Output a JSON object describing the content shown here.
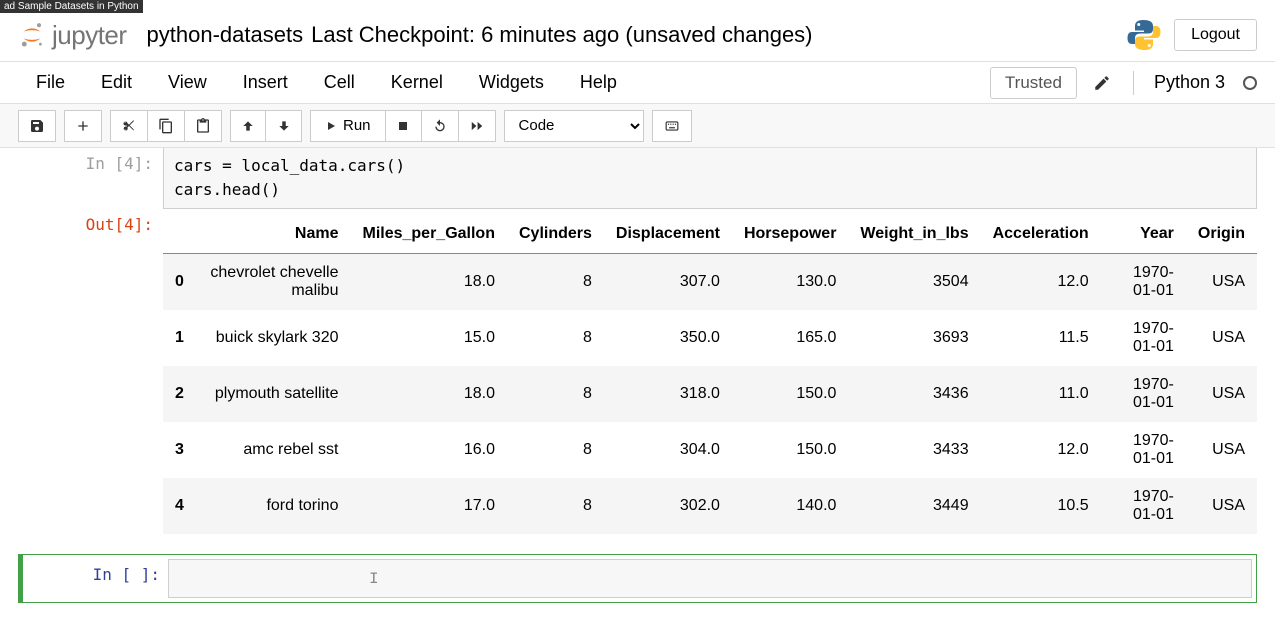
{
  "top_hint": "ad Sample Datasets in Python",
  "header": {
    "logo_text": "jupyter",
    "title": "python-datasets",
    "checkpoint": "Last Checkpoint: 6 minutes ago  (unsaved changes)",
    "logout": "Logout"
  },
  "menubar": {
    "items": [
      "File",
      "Edit",
      "View",
      "Insert",
      "Cell",
      "Kernel",
      "Widgets",
      "Help"
    ],
    "trusted": "Trusted",
    "kernel": "Python 3"
  },
  "toolbar": {
    "run_label": "Run",
    "celltype": "Code"
  },
  "cell4": {
    "in_prompt": "In [4]:",
    "out_prompt": "Out[4]:",
    "code_lines": [
      "cars = local_data.cars()",
      "cars.head()"
    ]
  },
  "dataframe": {
    "columns": [
      "Name",
      "Miles_per_Gallon",
      "Cylinders",
      "Displacement",
      "Horsepower",
      "Weight_in_lbs",
      "Acceleration",
      "Year",
      "Origin"
    ],
    "index": [
      "0",
      "1",
      "2",
      "3",
      "4"
    ],
    "rows": [
      [
        "chevrolet chevelle malibu",
        "18.0",
        "8",
        "307.0",
        "130.0",
        "3504",
        "12.0",
        "1970-01-01",
        "USA"
      ],
      [
        "buick skylark 320",
        "15.0",
        "8",
        "350.0",
        "165.0",
        "3693",
        "11.5",
        "1970-01-01",
        "USA"
      ],
      [
        "plymouth satellite",
        "18.0",
        "8",
        "318.0",
        "150.0",
        "3436",
        "11.0",
        "1970-01-01",
        "USA"
      ],
      [
        "amc rebel sst",
        "16.0",
        "8",
        "304.0",
        "150.0",
        "3433",
        "12.0",
        "1970-01-01",
        "USA"
      ],
      [
        "ford torino",
        "17.0",
        "8",
        "302.0",
        "140.0",
        "3449",
        "10.5",
        "1970-01-01",
        "USA"
      ]
    ]
  },
  "empty_prompt": "In [ ]:"
}
